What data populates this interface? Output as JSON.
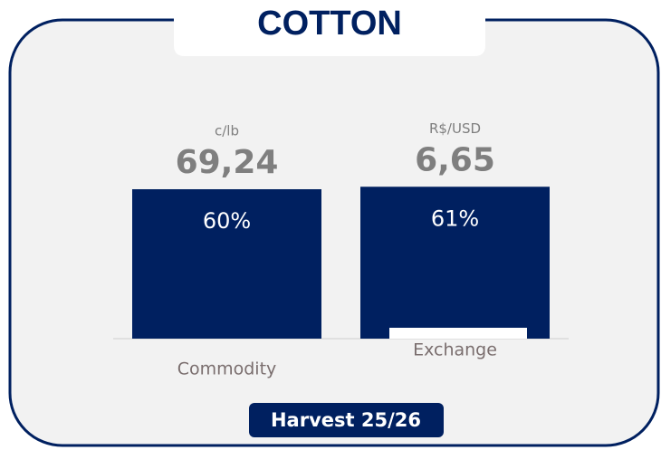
{
  "chart_data": {
    "type": "bar",
    "title": "COTTON",
    "categories": [
      "Commodity",
      "Exchange"
    ],
    "values": [
      60,
      61
    ],
    "value_labels": [
      "60%",
      "61%"
    ],
    "units": [
      "c/lb",
      "R$/USD"
    ],
    "prices": [
      "69,24",
      "6,65"
    ],
    "color": "#002060",
    "footer": "Harvest 25/26"
  }
}
